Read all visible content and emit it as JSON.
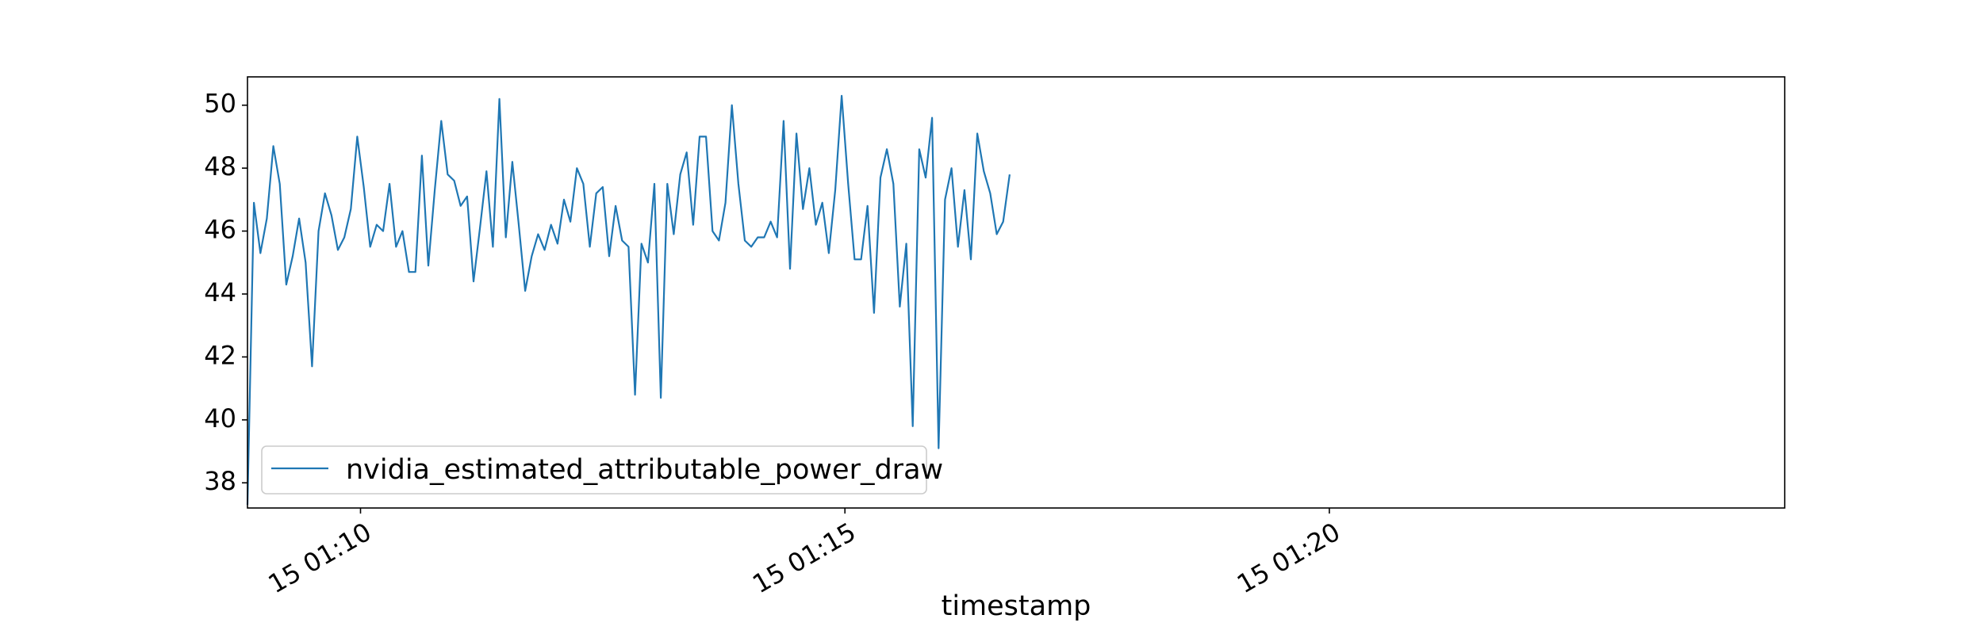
{
  "chart_data": {
    "type": "line",
    "title": "",
    "xlabel": "timestamp",
    "ylabel": "",
    "grid": false,
    "legend_position": "lower-left",
    "series": [
      {
        "name": "nvidia_estimated_attributable_power_draw",
        "color": "#1f77b4",
        "x_start": "01:08:50",
        "x_step_seconds": 4,
        "values": [
          37.3,
          46.9,
          45.3,
          46.4,
          48.7,
          47.5,
          44.3,
          45.2,
          46.4,
          45.0,
          41.7,
          46.0,
          47.2,
          46.5,
          45.4,
          45.8,
          46.7,
          49.0,
          47.4,
          45.5,
          46.2,
          46.0,
          47.5,
          45.5,
          46.0,
          44.7,
          44.7,
          48.4,
          44.9,
          47.3,
          49.5,
          47.8,
          47.6,
          46.8,
          47.1,
          44.4,
          46.1,
          47.9,
          45.5,
          50.2,
          45.8,
          48.2,
          46.2,
          44.1,
          45.2,
          45.9,
          45.4,
          46.2,
          45.6,
          47.0,
          46.3,
          48.0,
          47.5,
          45.5,
          47.2,
          47.4,
          45.2,
          46.8,
          45.7,
          45.5,
          40.8,
          45.6,
          45.0,
          47.5,
          40.7,
          47.5,
          45.9,
          47.8,
          48.5,
          46.2,
          49.0,
          49.0,
          46.0,
          45.7,
          46.9,
          50.0,
          47.5,
          45.7,
          45.5,
          45.8,
          45.8,
          46.3,
          45.8,
          49.5,
          44.8,
          49.1,
          46.7,
          48.0,
          46.2,
          46.9,
          45.3,
          47.3,
          50.3,
          47.5,
          45.1,
          45.1,
          46.8,
          43.4,
          47.7,
          48.6,
          47.5,
          43.6,
          45.6,
          39.8,
          48.6,
          47.7,
          49.6,
          39.1,
          47.0,
          48.0,
          45.5,
          47.3,
          45.1,
          49.1,
          47.9,
          47.2,
          45.9,
          46.3,
          47.8
        ]
      }
    ],
    "x_range": [
      "01:08:50",
      "01:24:42"
    ],
    "x_ticks": [
      {
        "time": "01:10:00",
        "label": "15 01:10"
      },
      {
        "time": "01:15:00",
        "label": "15 01:15"
      },
      {
        "time": "01:20:00",
        "label": "15 01:20"
      }
    ],
    "ylim": [
      37.2,
      50.9
    ],
    "y_ticks": [
      38,
      40,
      42,
      44,
      46,
      48,
      50
    ]
  }
}
